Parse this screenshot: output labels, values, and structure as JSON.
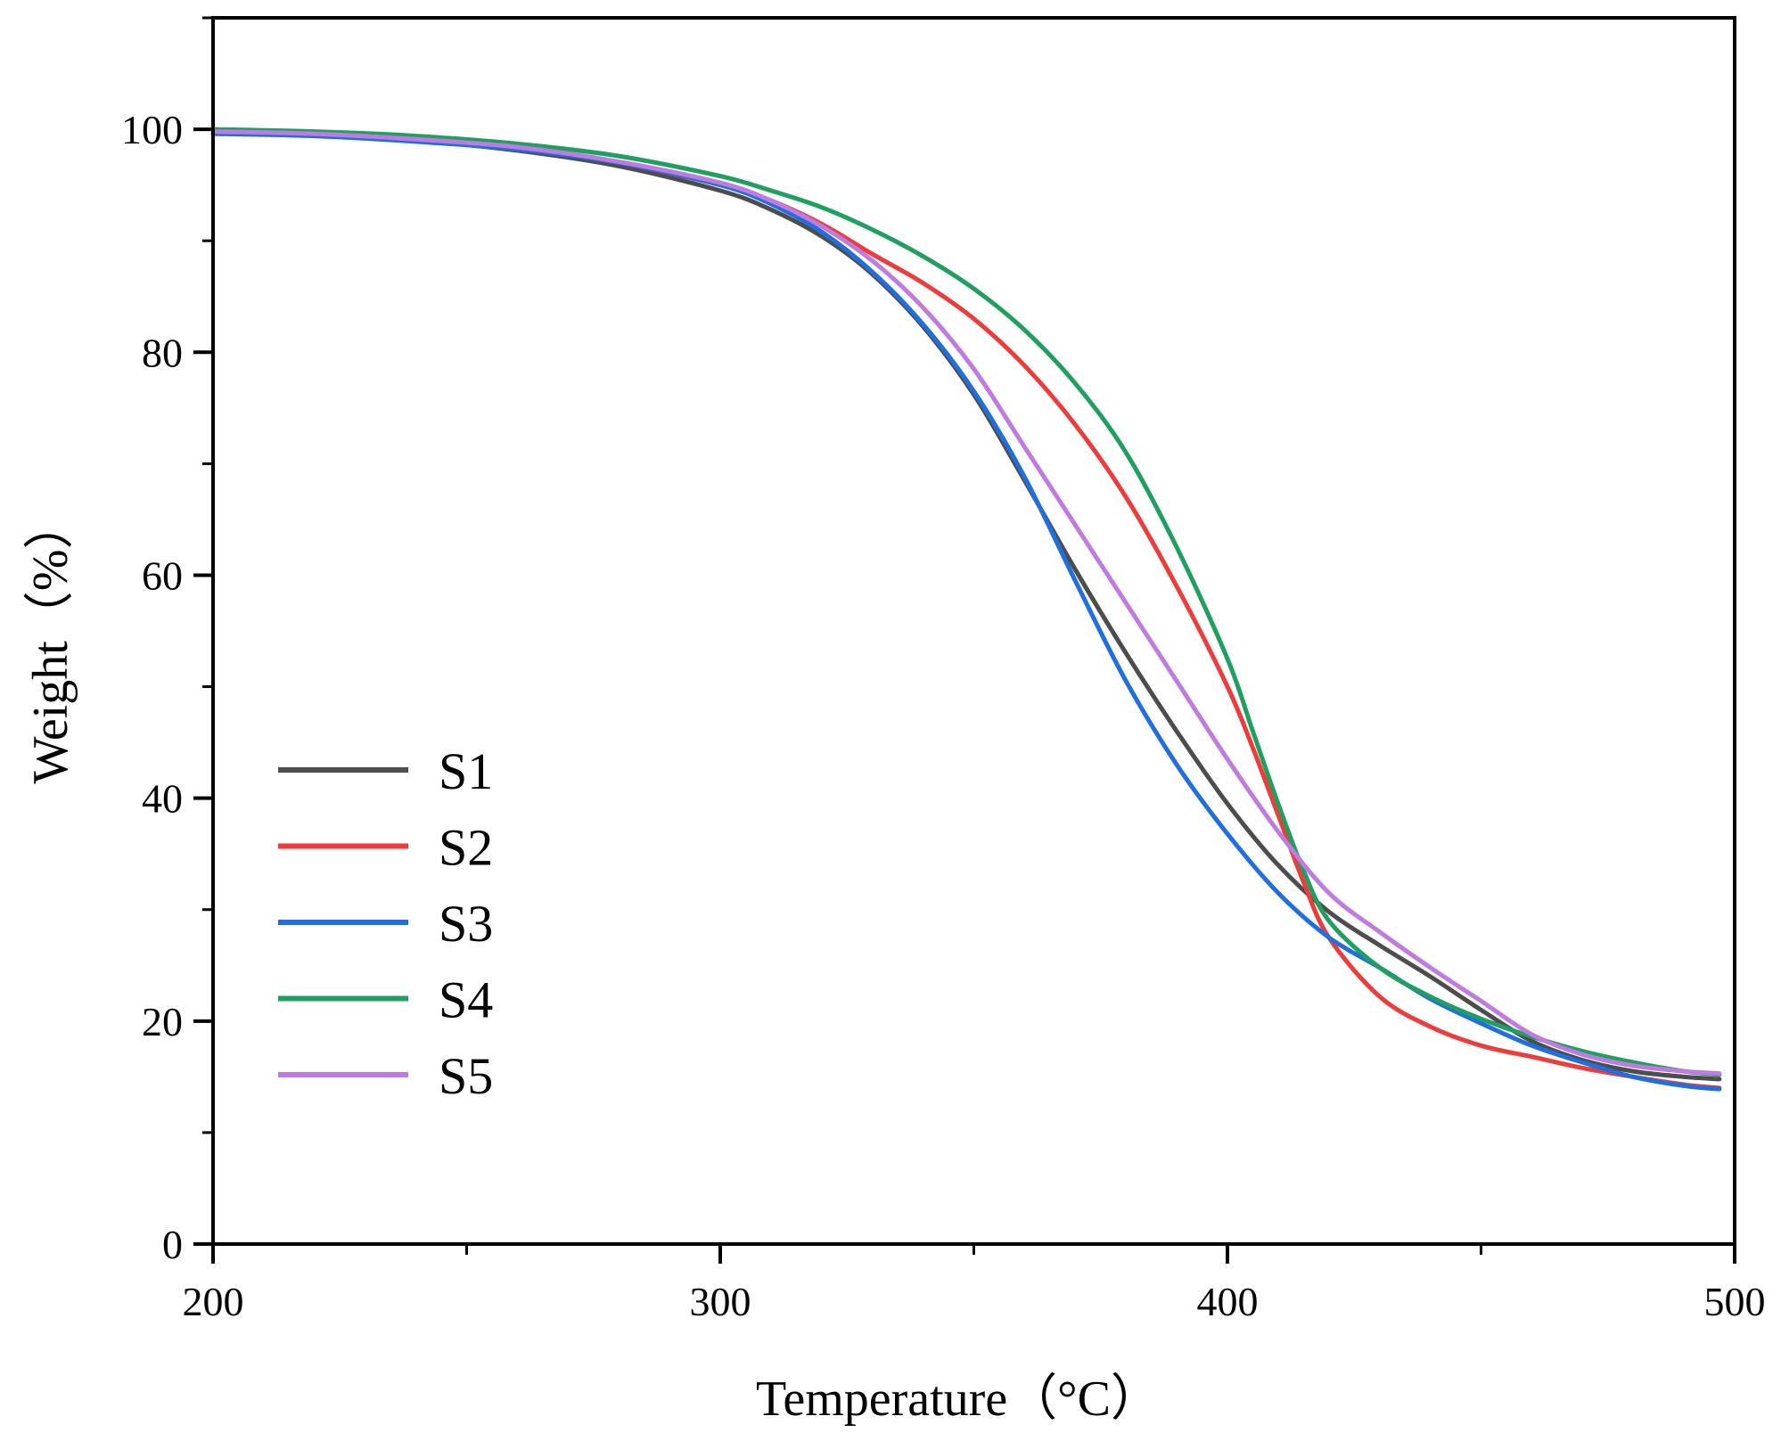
{
  "chart_data": {
    "type": "line",
    "title": "",
    "xlabel": "Temperature（°C）",
    "ylabel": "Weight（%）",
    "xlim": [
      200,
      500
    ],
    "ylim": [
      0,
      110
    ],
    "x_ticks": [
      200,
      300,
      400,
      500
    ],
    "x_tick_labels": [
      "200",
      "300",
      "400",
      "500"
    ],
    "y_ticks": [
      0,
      20,
      40,
      60,
      80,
      100
    ],
    "y_tick_labels": [
      "0",
      "20",
      "40",
      "60",
      "80",
      "100"
    ],
    "grid": false,
    "legend_position": "middle-left",
    "series": [
      {
        "name": "S1",
        "color": "#4d4d4d",
        "x": [
          200,
          220,
          240,
          260,
          280,
          300,
          310,
          320,
          330,
          340,
          350,
          360,
          370,
          380,
          390,
          400,
          410,
          420,
          430,
          440,
          450,
          460,
          470,
          480,
          490,
          497
        ],
        "y": [
          99.8,
          99.5,
          99.0,
          98.1,
          96.7,
          94.5,
          92.8,
          90.4,
          87.0,
          82.3,
          76.2,
          68.5,
          60.5,
          53.0,
          46.0,
          39.5,
          34.0,
          29.8,
          26.8,
          24.0,
          21.0,
          18.2,
          16.5,
          15.5,
          15.0,
          14.8
        ]
      },
      {
        "name": "S2",
        "color": "#ee3b3b",
        "x": [
          200,
          220,
          240,
          260,
          280,
          300,
          310,
          320,
          330,
          340,
          350,
          360,
          370,
          380,
          390,
          400,
          405,
          410,
          415,
          420,
          430,
          440,
          450,
          460,
          470,
          480,
          490,
          497
        ],
        "y": [
          99.8,
          99.6,
          99.1,
          98.3,
          97.0,
          95.0,
          93.6,
          91.5,
          88.8,
          86.2,
          83.0,
          78.8,
          73.5,
          67.0,
          59.0,
          50.0,
          44.5,
          38.5,
          32.5,
          27.5,
          22.2,
          19.5,
          17.8,
          16.8,
          15.8,
          15.0,
          14.3,
          14.0
        ]
      },
      {
        "name": "S3",
        "color": "#1f6fe0",
        "x": [
          200,
          220,
          240,
          260,
          280,
          300,
          310,
          320,
          330,
          340,
          350,
          360,
          370,
          380,
          390,
          400,
          410,
          420,
          430,
          440,
          450,
          460,
          470,
          480,
          490,
          497
        ],
        "y": [
          99.6,
          99.4,
          98.9,
          98.2,
          97.0,
          95.0,
          93.3,
          90.8,
          87.2,
          82.5,
          76.5,
          68.8,
          59.5,
          50.5,
          43.0,
          36.8,
          31.5,
          27.5,
          24.8,
          22.0,
          19.8,
          17.8,
          16.3,
          15.0,
          14.2,
          13.9
        ]
      },
      {
        "name": "S4",
        "color": "#1fa060",
        "x": [
          200,
          220,
          240,
          260,
          280,
          300,
          310,
          320,
          330,
          340,
          350,
          360,
          370,
          380,
          390,
          400,
          405,
          410,
          415,
          420,
          430,
          440,
          450,
          460,
          470,
          480,
          490,
          497
        ],
        "y": [
          100.0,
          99.8,
          99.4,
          98.7,
          97.6,
          95.8,
          94.5,
          93.0,
          91.0,
          88.6,
          85.7,
          82.0,
          77.2,
          71.0,
          62.5,
          52.5,
          46.0,
          39.5,
          33.5,
          29.0,
          24.8,
          22.2,
          20.2,
          18.6,
          17.3,
          16.3,
          15.5,
          15.2
        ]
      },
      {
        "name": "S5",
        "color": "#bf7be0",
        "x": [
          200,
          220,
          240,
          260,
          280,
          300,
          310,
          320,
          330,
          340,
          350,
          360,
          370,
          380,
          390,
          400,
          410,
          420,
          430,
          440,
          450,
          460,
          470,
          480,
          490,
          497
        ],
        "y": [
          99.8,
          99.6,
          99.1,
          98.4,
          97.1,
          95.2,
          93.6,
          91.3,
          88.2,
          84.0,
          78.5,
          71.5,
          64.5,
          57.5,
          50.5,
          43.5,
          37.0,
          31.5,
          28.0,
          24.8,
          21.8,
          18.8,
          17.0,
          16.0,
          15.5,
          15.3
        ]
      }
    ]
  }
}
